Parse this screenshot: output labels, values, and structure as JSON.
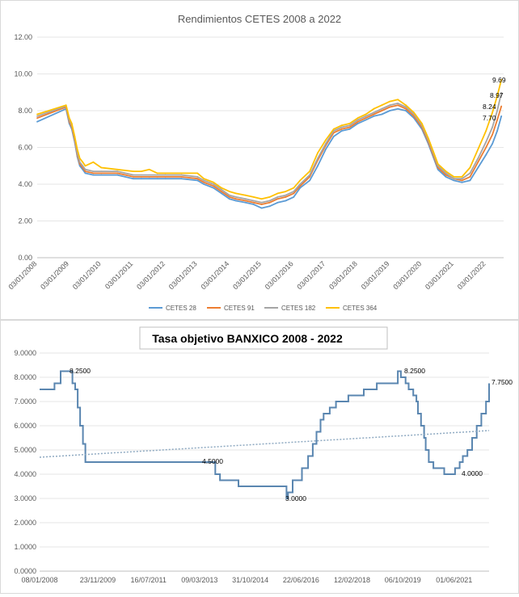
{
  "chart_data": [
    {
      "type": "line",
      "title": "Rendimientos CETES 2008 a 2022",
      "ylim": [
        0,
        12
      ],
      "y_ticks": [
        "12.00",
        "10.00",
        "8.00",
        "6.00",
        "4.00",
        "2.00",
        "0.00"
      ],
      "x_tick_labels": [
        "03/01/2008",
        "03/01/2009",
        "03/01/2010",
        "03/01/2011",
        "03/01/2012",
        "03/01/2013",
        "03/01/2014",
        "03/01/2015",
        "03/01/2016",
        "03/01/2017",
        "03/01/2018",
        "03/01/2019",
        "03/01/2020",
        "03/01/2021",
        "03/01/2022"
      ],
      "x_range": [
        2008.0,
        2022.55
      ],
      "series": [
        {
          "name": "CETES 28",
          "color": "#5B9BD5",
          "x": [
            2008.0,
            2008.9,
            2009.0,
            2009.08,
            2009.17,
            2009.25,
            2009.33,
            2009.42,
            2009.5,
            2009.75,
            2010.0,
            2010.5,
            2011.0,
            2011.25,
            2011.5,
            2011.75,
            2012.0,
            2012.5,
            2013.0,
            2013.2,
            2013.5,
            2013.75,
            2014.0,
            2014.2,
            2014.5,
            2014.75,
            2015.0,
            2015.25,
            2015.5,
            2015.75,
            2016.0,
            2016.2,
            2016.5,
            2016.75,
            2017.0,
            2017.25,
            2017.5,
            2017.75,
            2018.0,
            2018.25,
            2018.5,
            2018.75,
            2019.0,
            2019.25,
            2019.5,
            2019.75,
            2020.0,
            2020.2,
            2020.35,
            2020.5,
            2020.75,
            2021.0,
            2021.25,
            2021.5,
            2021.75,
            2022.0,
            2022.2,
            2022.35,
            2022.48
          ],
          "values": [
            7.4,
            8.1,
            7.3,
            7.0,
            6.3,
            5.5,
            5.0,
            4.8,
            4.6,
            4.5,
            4.5,
            4.5,
            4.3,
            4.3,
            4.3,
            4.3,
            4.3,
            4.3,
            4.2,
            4.0,
            3.8,
            3.5,
            3.2,
            3.1,
            3.0,
            2.9,
            2.7,
            2.8,
            3.0,
            3.1,
            3.3,
            3.8,
            4.2,
            5.0,
            5.9,
            6.6,
            6.9,
            7.0,
            7.3,
            7.5,
            7.7,
            7.8,
            8.0,
            8.1,
            8.0,
            7.6,
            7.0,
            6.2,
            5.5,
            4.8,
            4.4,
            4.2,
            4.1,
            4.2,
            4.9,
            5.6,
            6.2,
            6.9,
            7.7
          ]
        },
        {
          "name": "CETES 91",
          "color": "#ED7D31",
          "x": [
            2008.0,
            2008.9,
            2009.0,
            2009.08,
            2009.17,
            2009.25,
            2009.33,
            2009.42,
            2009.5,
            2009.75,
            2010.0,
            2010.5,
            2011.0,
            2011.25,
            2011.5,
            2011.75,
            2012.0,
            2012.5,
            2013.0,
            2013.2,
            2013.5,
            2013.75,
            2014.0,
            2014.2,
            2014.5,
            2014.75,
            2015.0,
            2015.25,
            2015.5,
            2015.75,
            2016.0,
            2016.2,
            2016.5,
            2016.75,
            2017.0,
            2017.25,
            2017.5,
            2017.75,
            2018.0,
            2018.25,
            2018.5,
            2018.75,
            2019.0,
            2019.25,
            2019.5,
            2019.75,
            2020.0,
            2020.2,
            2020.35,
            2020.5,
            2020.75,
            2021.0,
            2021.25,
            2021.5,
            2021.75,
            2022.0,
            2022.2,
            2022.35,
            2022.48
          ],
          "values": [
            7.6,
            8.2,
            7.4,
            7.1,
            6.4,
            5.6,
            5.1,
            4.9,
            4.7,
            4.6,
            4.6,
            4.6,
            4.4,
            4.4,
            4.4,
            4.4,
            4.4,
            4.4,
            4.3,
            4.1,
            3.9,
            3.6,
            3.3,
            3.2,
            3.1,
            3.0,
            2.9,
            3.0,
            3.2,
            3.3,
            3.5,
            3.9,
            4.4,
            5.3,
            6.1,
            6.8,
            7.0,
            7.1,
            7.4,
            7.6,
            7.8,
            8.0,
            8.2,
            8.3,
            8.1,
            7.7,
            7.1,
            6.3,
            5.6,
            4.9,
            4.5,
            4.3,
            4.2,
            4.4,
            5.2,
            6.0,
            6.7,
            7.5,
            8.24
          ]
        },
        {
          "name": "CETES 182",
          "color": "#A5A5A5",
          "x": [
            2008.0,
            2008.9,
            2009.0,
            2009.08,
            2009.17,
            2009.25,
            2009.33,
            2009.42,
            2009.5,
            2009.75,
            2010.0,
            2010.5,
            2011.0,
            2011.25,
            2011.5,
            2011.75,
            2012.0,
            2012.5,
            2013.0,
            2013.2,
            2013.5,
            2013.75,
            2014.0,
            2014.2,
            2014.5,
            2014.75,
            2015.0,
            2015.25,
            2015.5,
            2015.75,
            2016.0,
            2016.2,
            2016.5,
            2016.75,
            2017.0,
            2017.25,
            2017.5,
            2017.75,
            2018.0,
            2018.25,
            2018.5,
            2018.75,
            2019.0,
            2019.25,
            2019.5,
            2019.75,
            2020.0,
            2020.2,
            2020.35,
            2020.5,
            2020.75,
            2021.0,
            2021.25,
            2021.5,
            2021.75,
            2022.0,
            2022.2,
            2022.35,
            2022.48
          ],
          "values": [
            7.7,
            8.25,
            7.5,
            7.2,
            6.5,
            5.7,
            5.2,
            5.0,
            4.8,
            4.7,
            4.7,
            4.7,
            4.5,
            4.5,
            4.5,
            4.5,
            4.5,
            4.5,
            4.4,
            4.2,
            4.0,
            3.7,
            3.4,
            3.3,
            3.2,
            3.1,
            3.0,
            3.1,
            3.3,
            3.4,
            3.6,
            4.0,
            4.5,
            5.4,
            6.2,
            6.9,
            7.1,
            7.2,
            7.5,
            7.7,
            7.9,
            8.1,
            8.3,
            8.4,
            8.2,
            7.8,
            7.2,
            6.4,
            5.7,
            5.0,
            4.6,
            4.3,
            4.3,
            4.6,
            5.4,
            6.3,
            7.1,
            8.0,
            8.97
          ]
        },
        {
          "name": "CETES 364",
          "color": "#FFC000",
          "x": [
            2008.0,
            2008.9,
            2009.0,
            2009.08,
            2009.17,
            2009.25,
            2009.33,
            2009.42,
            2009.5,
            2009.75,
            2010.0,
            2010.5,
            2011.0,
            2011.25,
            2011.5,
            2011.75,
            2012.0,
            2012.5,
            2013.0,
            2013.2,
            2013.5,
            2013.75,
            2014.0,
            2014.2,
            2014.5,
            2014.75,
            2015.0,
            2015.25,
            2015.5,
            2015.75,
            2016.0,
            2016.2,
            2016.5,
            2016.75,
            2017.0,
            2017.25,
            2017.5,
            2017.75,
            2018.0,
            2018.25,
            2018.5,
            2018.75,
            2019.0,
            2019.25,
            2019.5,
            2019.75,
            2020.0,
            2020.2,
            2020.35,
            2020.5,
            2020.75,
            2021.0,
            2021.25,
            2021.5,
            2021.75,
            2022.0,
            2022.2,
            2022.35,
            2022.48
          ],
          "values": [
            7.8,
            8.3,
            7.6,
            7.3,
            6.6,
            5.9,
            5.4,
            5.2,
            5.0,
            5.2,
            4.9,
            4.8,
            4.7,
            4.7,
            4.8,
            4.6,
            4.6,
            4.6,
            4.6,
            4.3,
            4.1,
            3.8,
            3.6,
            3.5,
            3.4,
            3.3,
            3.2,
            3.3,
            3.5,
            3.6,
            3.8,
            4.2,
            4.7,
            5.7,
            6.4,
            7.0,
            7.2,
            7.3,
            7.6,
            7.8,
            8.1,
            8.3,
            8.5,
            8.6,
            8.3,
            7.9,
            7.3,
            6.5,
            5.8,
            5.1,
            4.7,
            4.4,
            4.4,
            4.9,
            5.9,
            6.9,
            7.9,
            8.8,
            9.69
          ]
        }
      ],
      "end_labels": [
        "9.69",
        "8.97",
        "8.24",
        "7.70"
      ],
      "legend": [
        "CETES 28",
        "CETES 91",
        "CETES 182",
        "CETES 364"
      ],
      "grid": true,
      "legend_position": "bottom"
    },
    {
      "type": "line",
      "title": "Tasa objetivo BANXICO 2008 - 2022",
      "ylim": [
        0,
        9
      ],
      "y_ticks": [
        "9.0000",
        "8.0000",
        "7.0000",
        "6.0000",
        "5.0000",
        "4.0000",
        "3.0000",
        "2.0000",
        "1.0000",
        "0.0000"
      ],
      "x_tick_labels": [
        "08/01/2008",
        "23/11/2009",
        "16/07/2011",
        "09/03/2013",
        "31/10/2014",
        "22/06/2016",
        "12/02/2018",
        "06/10/2019",
        "01/06/2021"
      ],
      "x_tick_dates": [
        2008.02,
        2009.9,
        2011.54,
        2013.19,
        2014.83,
        2016.47,
        2018.12,
        2019.76,
        2021.42
      ],
      "x_range": [
        2008.02,
        2022.55
      ],
      "series": [
        {
          "name": "Tasa objetivo",
          "color": "#5A86B0",
          "step": true,
          "x": [
            2008.02,
            2008.5,
            2008.7,
            2009.0,
            2009.08,
            2009.17,
            2009.25,
            2009.33,
            2009.42,
            2009.5,
            2013.2,
            2013.7,
            2013.85,
            2014.45,
            2016.0,
            2016.05,
            2016.2,
            2016.5,
            2016.7,
            2016.85,
            2016.97,
            2017.1,
            2017.2,
            2017.4,
            2017.6,
            2018.0,
            2018.5,
            2018.92,
            2019.6,
            2019.7,
            2019.85,
            2019.95,
            2020.1,
            2020.2,
            2020.25,
            2020.35,
            2020.45,
            2020.5,
            2020.6,
            2020.75,
            2021.1,
            2021.45,
            2021.6,
            2021.7,
            2021.85,
            2022.0,
            2022.15,
            2022.3,
            2022.45,
            2022.55
          ],
          "values": [
            7.5,
            7.75,
            8.25,
            8.25,
            7.75,
            7.5,
            6.75,
            6.0,
            5.25,
            4.5,
            4.5,
            4.0,
            3.75,
            3.5,
            3.0,
            3.25,
            3.75,
            4.25,
            4.75,
            5.25,
            5.75,
            6.25,
            6.5,
            6.75,
            7.0,
            7.25,
            7.5,
            7.75,
            8.25,
            8.0,
            7.75,
            7.5,
            7.25,
            7.0,
            6.5,
            6.0,
            5.5,
            5.0,
            4.5,
            4.25,
            4.0,
            4.25,
            4.5,
            4.75,
            5.0,
            5.5,
            6.0,
            6.5,
            7.0,
            7.75
          ]
        },
        {
          "name": "Tendencia",
          "color": "#8EA9C1",
          "dotted": true,
          "x": [
            2008.02,
            2022.55
          ],
          "values": [
            4.7,
            5.8
          ]
        }
      ],
      "annotations": [
        "8.2500",
        "4.5000",
        "3.0000",
        "8.2500",
        "4.0000",
        "7.7500"
      ],
      "grid": true
    }
  ]
}
